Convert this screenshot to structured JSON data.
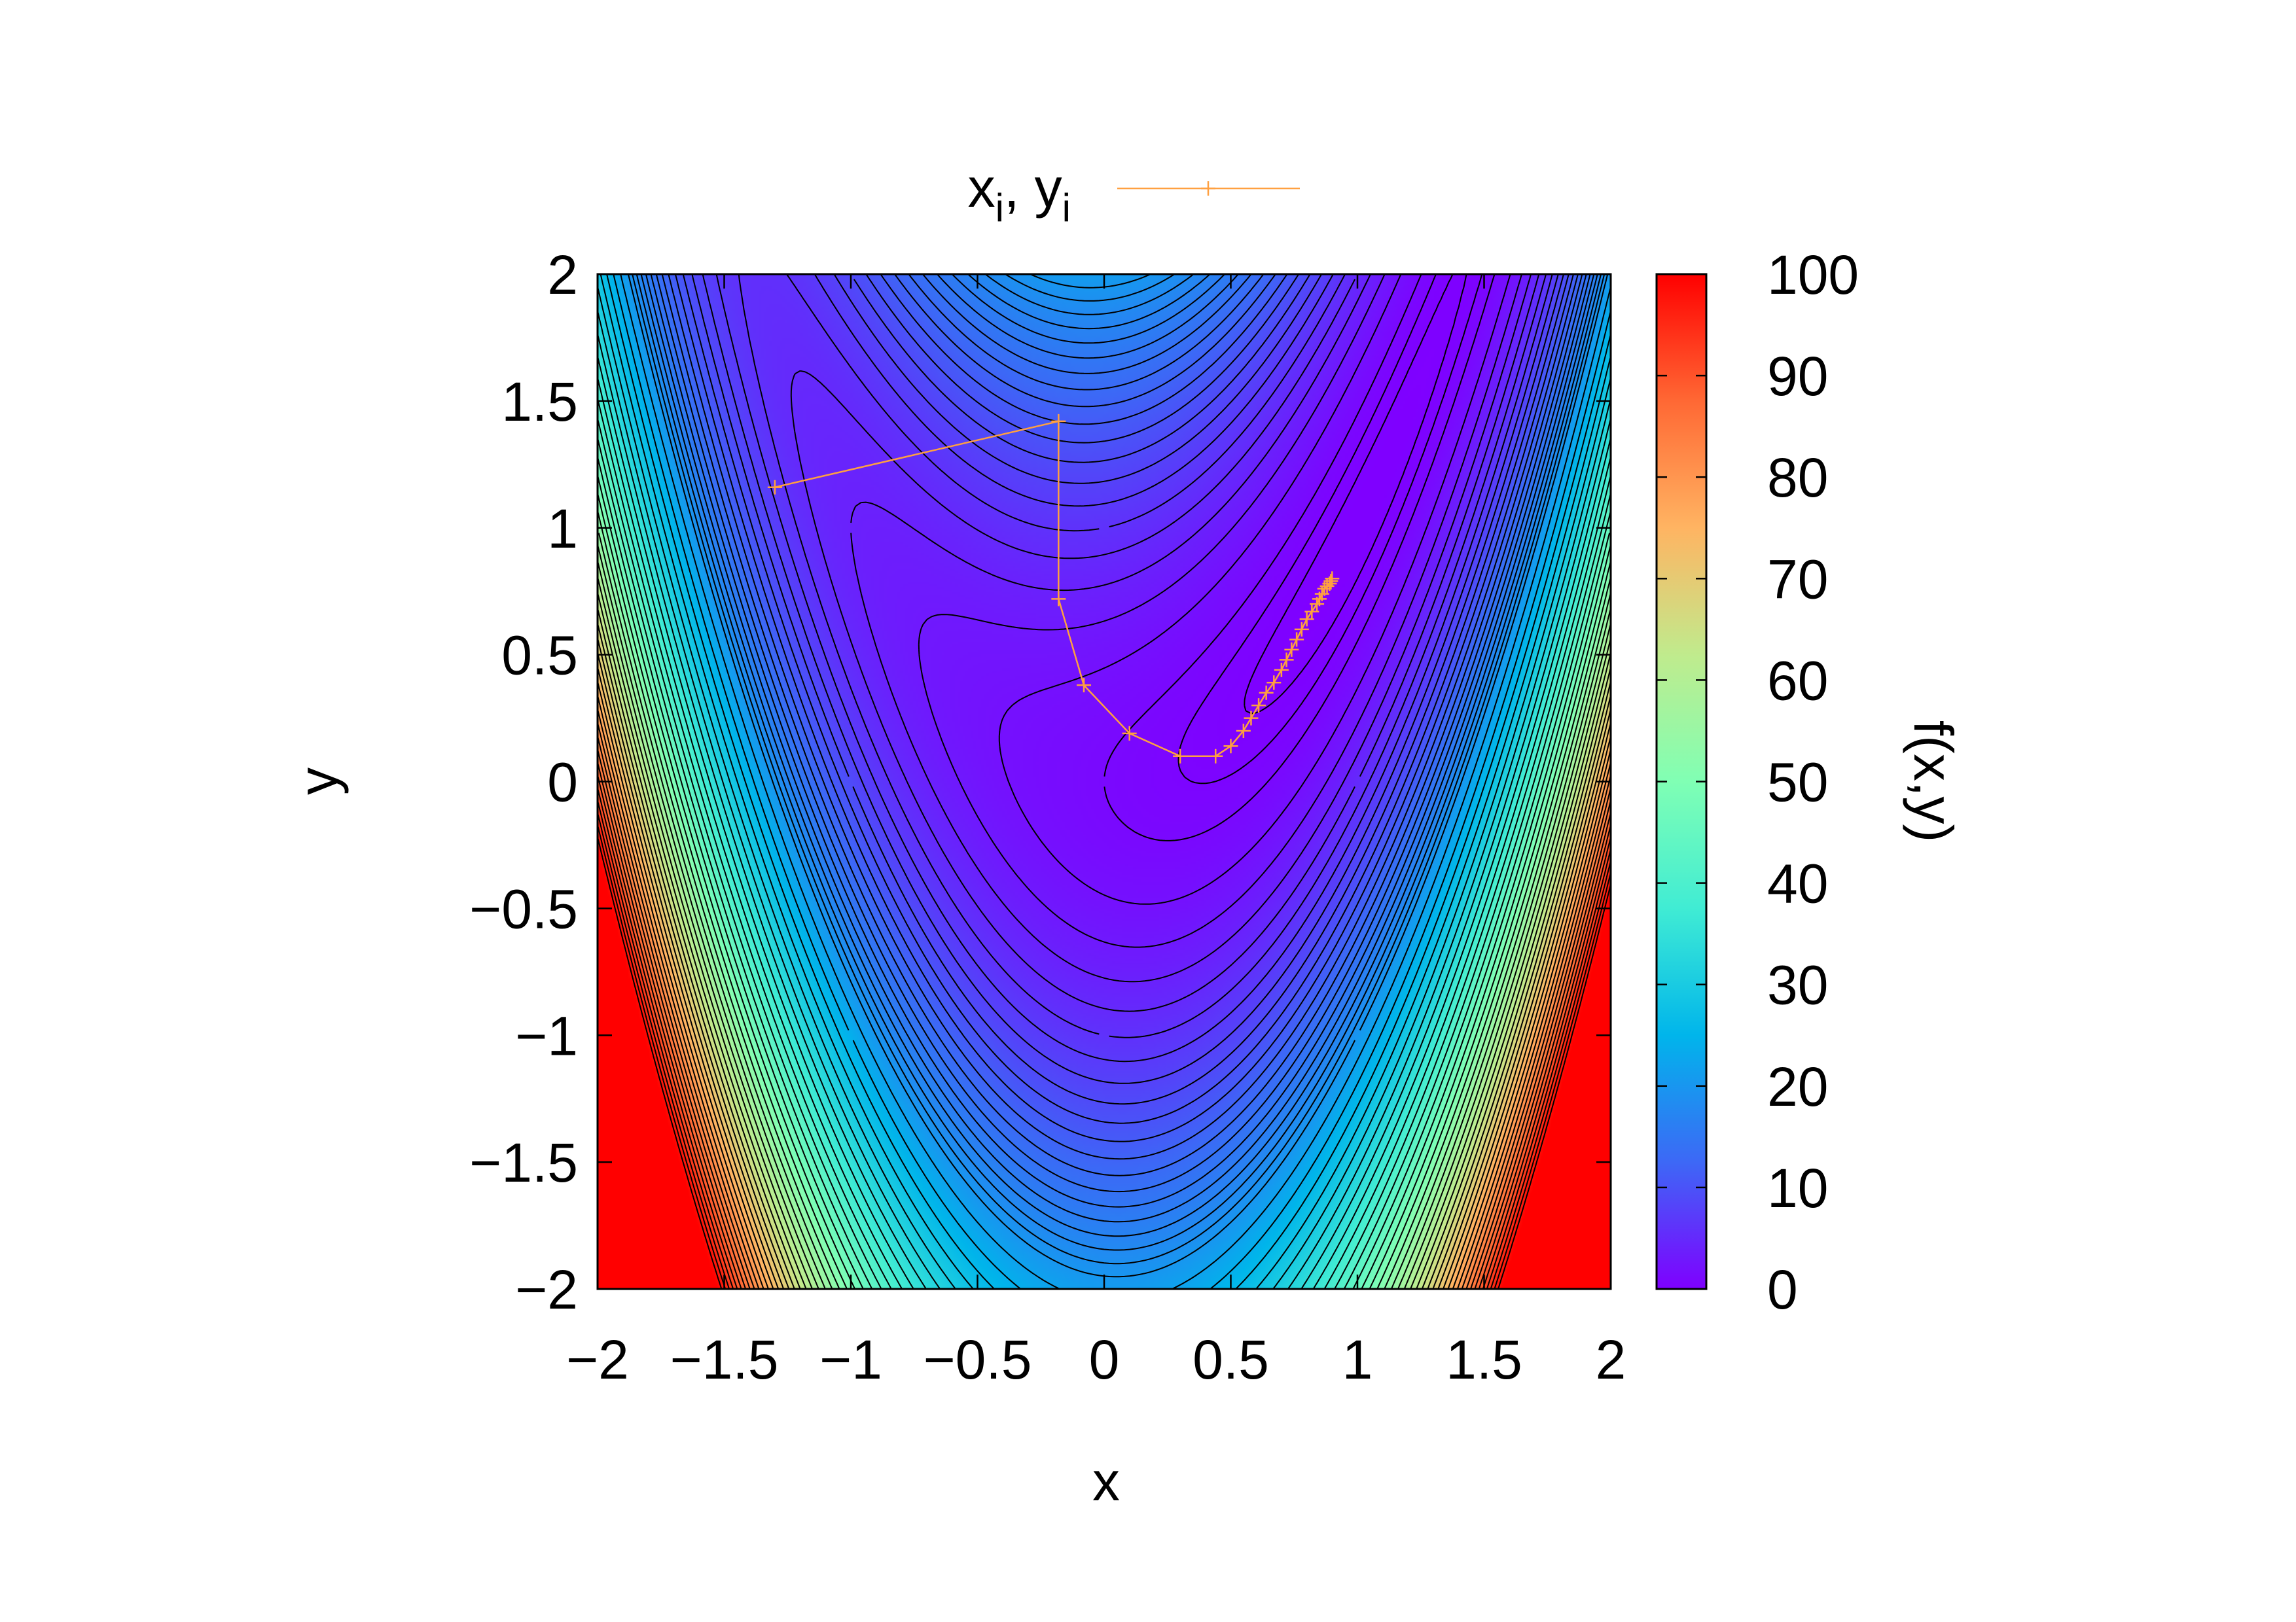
{
  "chart_data": {
    "type": "heatmap",
    "function": "(1 - x)^2 + 5*(y - x^2)^2",
    "xlabel": "x",
    "ylabel": "y",
    "colorbar_label": "f(x,y)",
    "xlim": [
      -2,
      2
    ],
    "ylim": [
      -2,
      2
    ],
    "zlim": [
      0,
      100
    ],
    "x_ticks": [
      "−2",
      "−1.5",
      "−1",
      "−0.5",
      "0",
      "0.5",
      "1",
      "1.5",
      "2"
    ],
    "y_ticks": [
      "−2",
      "−1.5",
      "−1",
      "−0.5",
      "0",
      "0.5",
      "1",
      "1.5",
      "2"
    ],
    "colorbar_ticks": [
      "0",
      "10",
      "20",
      "30",
      "40",
      "50",
      "60",
      "70",
      "80",
      "90",
      "100"
    ],
    "colormap": [
      "#7f00ff",
      "#3d68f6",
      "#00b5eb",
      "#40ecd4",
      "#80ffb4",
      "#c0eb8d",
      "#ffb462",
      "#ff6834",
      "#ff0000"
    ],
    "contour_levels": [
      0.2,
      0.5,
      1,
      2,
      3,
      4,
      5,
      6,
      7,
      8,
      9,
      10,
      11,
      12,
      13,
      14,
      15,
      16,
      17,
      18,
      19,
      20,
      22,
      24,
      26,
      28,
      30,
      32,
      34,
      36,
      38,
      40,
      42,
      44,
      46,
      48,
      50,
      52,
      54,
      56,
      58,
      60,
      62,
      64,
      66,
      68,
      70,
      72,
      74,
      76,
      78,
      80,
      82,
      84,
      86,
      88,
      90,
      92,
      94,
      96,
      98
    ],
    "legend": {
      "position": "top-center"
    },
    "series": [
      {
        "name_base_x": "x",
        "name_sub_x": "i",
        "name_sep": ", ",
        "name_base_y": "y",
        "name_sub_y": "i",
        "color": "#ffa040",
        "marker": "plus",
        "points": [
          [
            -1.3,
            1.16
          ],
          [
            -0.18,
            1.42
          ],
          [
            -0.18,
            0.72
          ],
          [
            -0.08,
            0.38
          ],
          [
            0.1,
            0.19
          ],
          [
            0.3,
            0.1
          ],
          [
            0.44,
            0.1
          ],
          [
            0.5,
            0.14
          ],
          [
            0.55,
            0.2
          ],
          [
            0.58,
            0.25
          ],
          [
            0.61,
            0.3
          ],
          [
            0.64,
            0.35
          ],
          [
            0.67,
            0.39
          ],
          [
            0.7,
            0.44
          ],
          [
            0.72,
            0.48
          ],
          [
            0.74,
            0.52
          ],
          [
            0.76,
            0.56
          ],
          [
            0.78,
            0.6
          ],
          [
            0.8,
            0.64
          ],
          [
            0.82,
            0.67
          ],
          [
            0.84,
            0.7
          ],
          [
            0.85,
            0.72
          ],
          [
            0.86,
            0.74
          ],
          [
            0.87,
            0.76
          ],
          [
            0.88,
            0.77
          ],
          [
            0.89,
            0.78
          ],
          [
            0.895,
            0.79
          ],
          [
            0.9,
            0.8
          ]
        ]
      }
    ]
  }
}
